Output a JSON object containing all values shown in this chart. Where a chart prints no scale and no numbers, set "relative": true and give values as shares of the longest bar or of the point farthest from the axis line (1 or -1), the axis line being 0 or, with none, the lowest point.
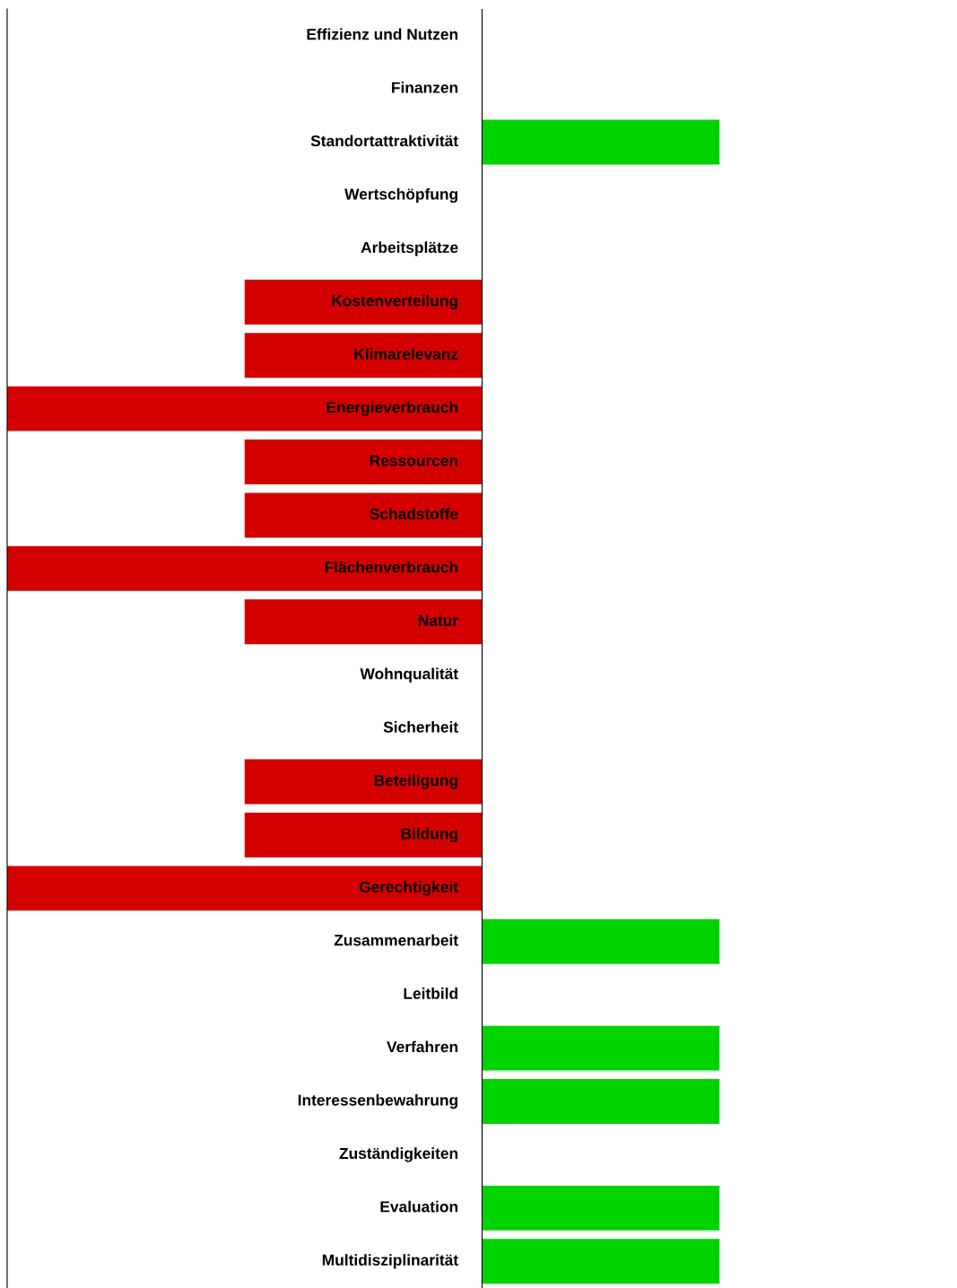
{
  "chart_data": {
    "type": "bar",
    "orientation": "horizontal",
    "relative": true,
    "categories": [
      "Effizienz und Nutzen",
      "Finanzen",
      "Standortattraktivität",
      "Wertschöpfung",
      "Arbeitsplätze",
      "Kostenverteilung",
      "Klimarelevanz",
      "Energieverbrauch",
      "Ressourcen",
      "Schadstoffe",
      "Flächenverbrauch",
      "Natur",
      "Wohnqualität",
      "Sicherheit",
      "Beteiligung",
      "Bildung",
      "Gerechtigkeit",
      "Zusammenarbeit",
      "Leitbild",
      "Verfahren",
      "Interessenbewahrung",
      "Zuständigkeiten",
      "Evaluation",
      "Multidisziplinarität"
    ],
    "values": [
      0,
      0,
      0.5,
      0,
      0,
      -0.5,
      -0.5,
      -1,
      -0.5,
      -0.5,
      -1,
      -0.5,
      0,
      0,
      -0.5,
      -0.5,
      -1,
      0.5,
      0,
      0.5,
      0.5,
      0,
      0.5,
      0.5
    ],
    "colors": [
      "#d40000",
      "#d40000",
      "#00d400",
      "#d40000",
      "#d40000",
      "#d40000",
      "#d40000",
      "#d40000",
      "#d40000",
      "#d40000",
      "#d40000",
      "#d40000",
      "#d40000",
      "#d40000",
      "#d40000",
      "#d40000",
      "#d40000",
      "#00d400",
      "#d40000",
      "#00d400",
      "#00d400",
      "#d40000",
      "#00d400",
      "#00d400"
    ]
  }
}
